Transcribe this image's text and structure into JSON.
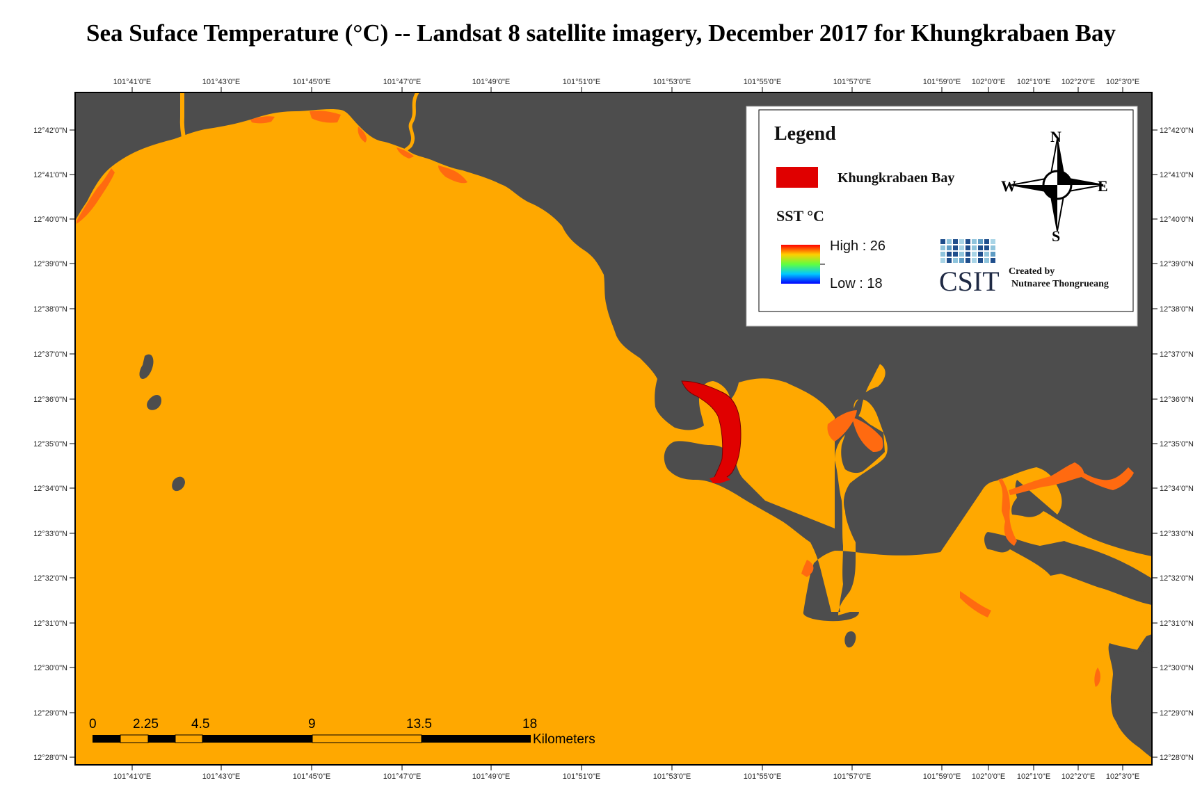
{
  "title": "Sea Suface Temperature (°C) -- Landsat 8 satellite imagery, December 2017 for Khungkrabaen Bay",
  "colors": {
    "sea": "#FFA800",
    "land": "#4D4D4D",
    "warm_patch": "#FF6A10",
    "bay": "#E00000",
    "frame": "#000000"
  },
  "longitude_labels": [
    "101°41'0\"E",
    "101°43'0\"E",
    "101°45'0\"E",
    "101°47'0\"E",
    "101°49'0\"E",
    "101°51'0\"E",
    "101°53'0\"E",
    "101°55'0\"E",
    "101°57'0\"E",
    "101°59'0\"E",
    "102°0'0\"E",
    "102°1'0\"E",
    "102°2'0\"E",
    "102°3'0\"E"
  ],
  "latitude_labels": [
    "12°42'0\"N",
    "12°41'0\"N",
    "12°40'0\"N",
    "12°39'0\"N",
    "12°38'0\"N",
    "12°37'0\"N",
    "12°36'0\"N",
    "12°35'0\"N",
    "12°34'0\"N",
    "12°33'0\"N",
    "12°32'0\"N",
    "12°31'0\"N",
    "12°30'0\"N",
    "12°29'0\"N",
    "12°28'0\"N"
  ],
  "legend": {
    "title": "Legend",
    "bay_label": "Khungkrabaen Bay",
    "sst_heading": "SST  °C",
    "high_label": "High : 26",
    "low_label": "Low : 18",
    "logo_text": "CSIT",
    "credit_line1": "Created by",
    "credit_line2": "Nutnaree Thongrueang"
  },
  "compass": {
    "north": "N",
    "south": "S",
    "east": "E",
    "west": "W"
  },
  "scale_bar": {
    "labels": [
      "0",
      "2.25",
      "4.5",
      "9",
      "13.5",
      "18"
    ],
    "unit": "Kilometers"
  }
}
